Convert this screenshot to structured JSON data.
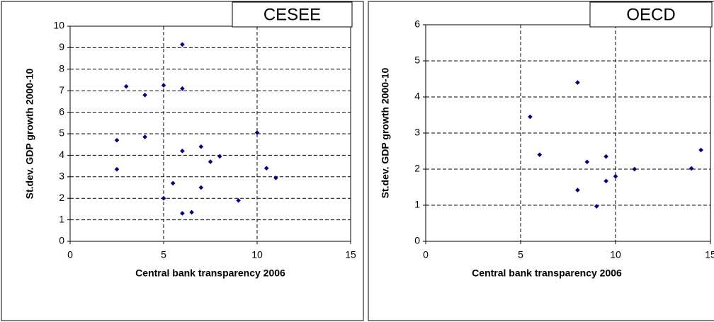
{
  "chart_data": [
    {
      "type": "scatter",
      "title": "CESEE",
      "x_label": "Central bank transparency 2006",
      "y_label": "St.dev. GDP growth 2000-10",
      "series": [
        {
          "name": "CESEE",
          "color": "#000080",
          "x": [
            2.5,
            2.5,
            3,
            4,
            4,
            5,
            6,
            6,
            6,
            5,
            5.5,
            6,
            6.5,
            7,
            7,
            7.5,
            8,
            9,
            10,
            10.5,
            11
          ],
          "values": [
            4.7,
            3.35,
            7.2,
            6.8,
            4.85,
            7.25,
            9.15,
            7.1,
            4.2,
            2.0,
            2.7,
            1.3,
            1.35,
            4.4,
            2.5,
            3.7,
            3.95,
            1.9,
            5.05,
            3.4,
            2.95
          ]
        }
      ],
      "xlim": [
        0,
        15
      ],
      "xticks": [
        0,
        5,
        10,
        15
      ],
      "ylim": [
        0,
        10
      ],
      "yticks": [
        0,
        1,
        2,
        3,
        4,
        5,
        6,
        7,
        8,
        9,
        10
      ],
      "grid": true
    },
    {
      "type": "scatter",
      "title": "OECD",
      "x_label": "Central bank transparency 2006",
      "y_label": "St.dev. GDP growth 2000-10",
      "series": [
        {
          "name": "OECD",
          "color": "#000080",
          "x": [
            5.5,
            6,
            8,
            8,
            8.5,
            9,
            9.5,
            9.5,
            10,
            11,
            14,
            14.5
          ],
          "values": [
            3.45,
            2.4,
            4.4,
            1.42,
            2.2,
            0.97,
            2.35,
            1.67,
            1.8,
            2.0,
            2.02,
            2.53
          ]
        }
      ],
      "xlim": [
        0,
        15
      ],
      "xticks": [
        0,
        5,
        10,
        15
      ],
      "ylim": [
        0,
        6
      ],
      "yticks": [
        0,
        1,
        2,
        3,
        4,
        5,
        6
      ],
      "grid": true
    }
  ]
}
